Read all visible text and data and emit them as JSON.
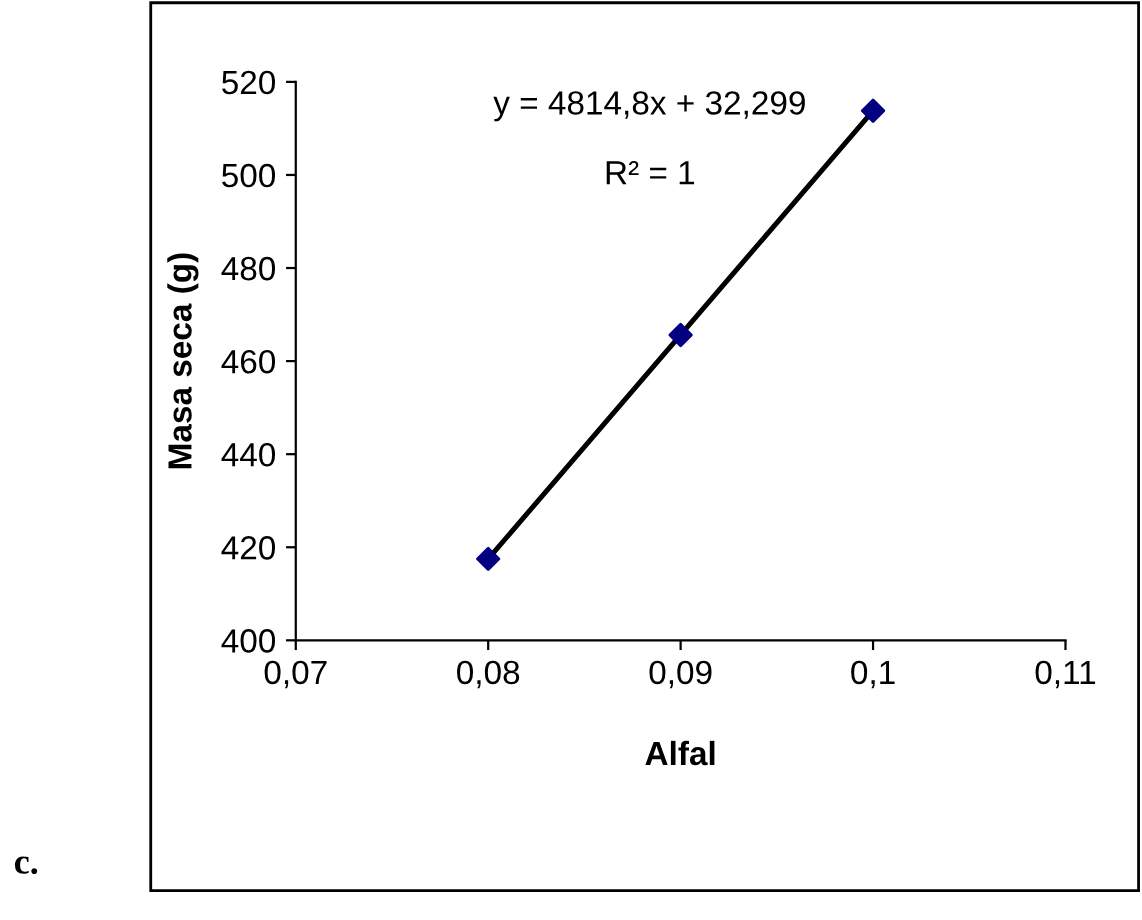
{
  "chart_data": {
    "type": "scatter",
    "xlabel": "Alfal",
    "ylabel": "Masa seca (g)",
    "x": [
      0.08,
      0.09,
      0.1
    ],
    "series": [
      {
        "color": "#000080",
        "marker": "diamond",
        "values": [
          417.5,
          465.6,
          513.8
        ]
      },
      {
        "type": "line",
        "color": "#000000",
        "x": [
          0.08,
          0.1
        ],
        "values": [
          417.5,
          513.8
        ],
        "line_style": "solid"
      }
    ],
    "xlim": [
      0.07,
      0.11
    ],
    "ylim": [
      400,
      520
    ],
    "xticks": [
      {
        "value": 0.07,
        "label": "0,07"
      },
      {
        "value": 0.08,
        "label": "0,08"
      },
      {
        "value": 0.09,
        "label": "0,09"
      },
      {
        "value": 0.1,
        "label": "0,1"
      },
      {
        "value": 0.11,
        "label": "0,11"
      }
    ],
    "yticks": [
      400,
      420,
      440,
      460,
      480,
      500,
      520
    ],
    "annotations": [
      "y = 4814,8x + 32,299",
      "R² = 1",
      "c."
    ],
    "grid": false
  }
}
